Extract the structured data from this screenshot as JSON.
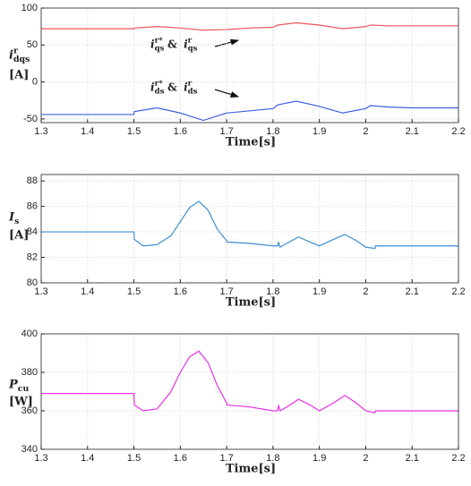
{
  "chart_data": [
    {
      "type": "line",
      "ylabel": [
        {
          "text": "i",
          "pos": "base"
        },
        {
          "text": "r",
          "pos": "sup"
        },
        {
          "text": "dqs",
          "pos": "sub"
        }
      ],
      "yunit": "[A]",
      "xlabel": "Time[s]",
      "annotations": [
        [
          {
            "text": "i",
            "pos": "base"
          },
          {
            "text": "r*",
            "pos": "sup"
          },
          {
            "text": "qs",
            "pos": "sub"
          },
          {
            "text": "&",
            "pos": "base"
          },
          {
            "text": "i",
            "pos": "base"
          },
          {
            "text": "r",
            "pos": "sup"
          },
          {
            "text": "qs",
            "pos": "sub"
          }
        ],
        [
          {
            "text": "i",
            "pos": "base"
          },
          {
            "text": "r*",
            "pos": "sup"
          },
          {
            "text": "ds",
            "pos": "sub"
          },
          {
            "text": "&",
            "pos": "base"
          },
          {
            "text": "i",
            "pos": "base"
          },
          {
            "text": "r",
            "pos": "sup"
          },
          {
            "text": "ds",
            "pos": "sub"
          }
        ]
      ],
      "x": [
        1.3,
        1.5,
        1.501,
        1.55,
        1.6,
        1.65,
        1.7,
        1.75,
        1.8,
        1.81,
        1.85,
        1.9,
        1.95,
        2.0,
        2.01,
        2.05,
        2.1,
        2.2
      ],
      "series": [
        {
          "color": "#f0545c",
          "values": [
            72,
            72,
            73,
            75,
            73,
            70,
            71,
            73,
            74,
            77,
            80,
            77,
            72,
            75,
            77,
            76,
            76,
            76
          ]
        },
        {
          "color": "#3f60e0",
          "values": [
            -44,
            -44,
            -40,
            -35,
            -42,
            -52,
            -42,
            -39,
            -36,
            -31,
            -26,
            -33,
            -42,
            -36,
            -32,
            -34,
            -35,
            -35
          ]
        }
      ],
      "xlim": [
        1.3,
        2.2
      ],
      "xticks": [
        1.3,
        1.4,
        1.5,
        1.6,
        1.7,
        1.8,
        1.9,
        2,
        2.1,
        2.2
      ],
      "ylim": [
        -55,
        100
      ],
      "yticks": [
        -50,
        0,
        50,
        100
      ],
      "grid": true
    },
    {
      "type": "line",
      "ylabel": [
        {
          "text": "I",
          "pos": "base"
        },
        {
          "text": "s",
          "pos": "sub"
        }
      ],
      "yunit": "[A]",
      "xlabel": "Time[s]",
      "x": [
        1.3,
        1.5,
        1.501,
        1.52,
        1.55,
        1.58,
        1.6,
        1.62,
        1.64,
        1.66,
        1.68,
        1.7,
        1.701,
        1.75,
        1.8,
        1.81,
        1.812,
        1.815,
        1.83,
        1.855,
        1.88,
        1.9,
        1.93,
        1.955,
        1.98,
        2.0,
        2.02,
        2.021,
        2.1,
        2.2
      ],
      "series": [
        {
          "color": "#3a8fd0",
          "values": [
            84,
            84,
            83.4,
            82.9,
            83,
            83.7,
            84.8,
            85.9,
            86.4,
            85.7,
            84.2,
            83.3,
            83.2,
            83.1,
            82.9,
            82.9,
            83.2,
            82.8,
            83.1,
            83.6,
            83.2,
            82.9,
            83.4,
            83.8,
            83.3,
            82.8,
            82.7,
            82.9,
            82.9,
            82.9
          ]
        }
      ],
      "xlim": [
        1.3,
        2.2
      ],
      "xticks": [
        1.3,
        1.4,
        1.5,
        1.6,
        1.7,
        1.8,
        1.9,
        2,
        2.1,
        2.2
      ],
      "ylim": [
        80,
        88.5
      ],
      "yticks": [
        80,
        82,
        84,
        86,
        88
      ],
      "grid": true
    },
    {
      "type": "line",
      "ylabel": [
        {
          "text": "P",
          "pos": "base"
        },
        {
          "text": "cu",
          "pos": "sub"
        }
      ],
      "yunit": "[W]",
      "xlabel": "Time[s]",
      "x": [
        1.3,
        1.5,
        1.501,
        1.52,
        1.55,
        1.58,
        1.6,
        1.62,
        1.64,
        1.66,
        1.68,
        1.7,
        1.701,
        1.75,
        1.8,
        1.81,
        1.812,
        1.815,
        1.83,
        1.855,
        1.88,
        1.9,
        1.93,
        1.955,
        1.98,
        2.0,
        2.02,
        2.021,
        2.1,
        2.2
      ],
      "series": [
        {
          "color": "#e830e8",
          "values": [
            369,
            369,
            363,
            360,
            361,
            370,
            380,
            388,
            391,
            385,
            373,
            364,
            363,
            362,
            360,
            360,
            363,
            360,
            362,
            366,
            363,
            360,
            364,
            368,
            364,
            360,
            359,
            360,
            360,
            360
          ]
        }
      ],
      "xlim": [
        1.3,
        2.2
      ],
      "xticks": [
        1.3,
        1.4,
        1.5,
        1.6,
        1.7,
        1.8,
        1.9,
        2,
        2.1,
        2.2
      ],
      "ylim": [
        340,
        400
      ],
      "yticks": [
        340,
        360,
        380,
        400
      ],
      "grid": true
    }
  ]
}
